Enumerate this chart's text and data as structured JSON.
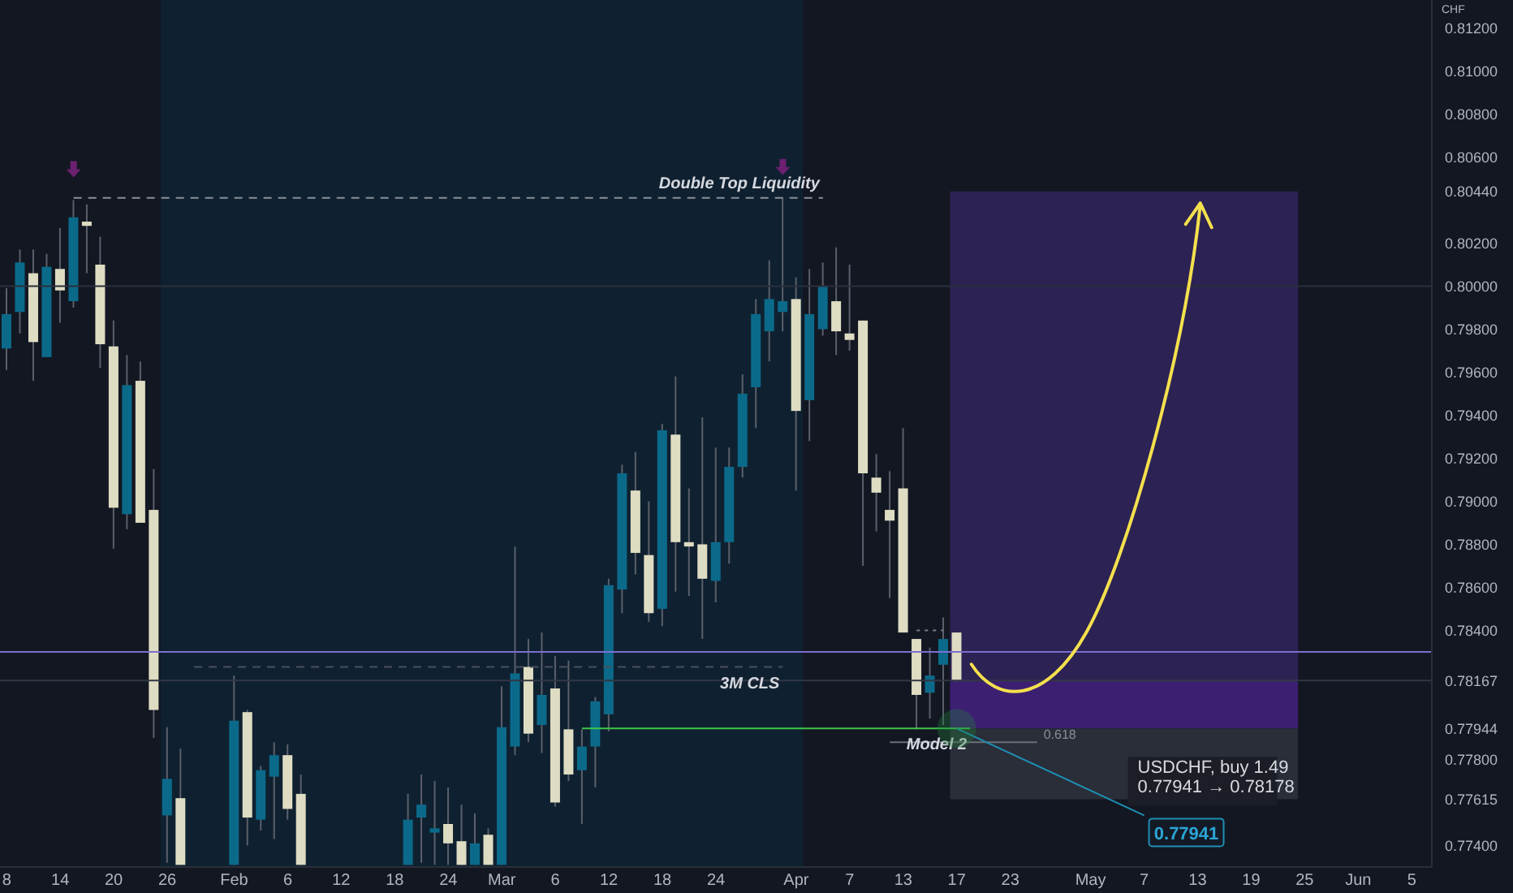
{
  "chart_data": {
    "type": "candlestick",
    "ylabel": "CHF",
    "categories": [
      "8",
      null,
      null,
      null,
      "14",
      null,
      null,
      null,
      "20",
      null,
      null,
      null,
      "26",
      null,
      null,
      null,
      null,
      "Feb",
      null,
      null,
      null,
      "6",
      null,
      null,
      null,
      "12",
      null,
      null,
      null,
      "18",
      null,
      null,
      null,
      "24",
      null,
      null,
      null,
      "Mar",
      null,
      null,
      null,
      "6",
      null,
      null,
      null,
      "12",
      null,
      null,
      null,
      "18",
      null,
      null,
      null,
      "24",
      null,
      null,
      null,
      null,
      null,
      "Apr",
      null,
      null,
      null,
      "7",
      null,
      null,
      null,
      "13",
      null,
      null,
      null,
      "17",
      null,
      null,
      null,
      "23",
      null,
      null,
      null,
      null,
      null,
      "May",
      null,
      null,
      null,
      "7",
      null,
      null,
      null,
      "13",
      null,
      null,
      null,
      "19",
      null,
      null,
      null,
      "25",
      null,
      null,
      null,
      "Jun",
      null,
      null,
      null,
      "5",
      null
    ],
    "ohlc": [
      [
        0.7971,
        0.7999,
        0.7961,
        0.7987
      ],
      [
        0.7988,
        0.8017,
        0.7978,
        0.8011
      ],
      [
        0.8006,
        0.8017,
        0.7956,
        0.7974
      ],
      [
        0.7967,
        0.8015,
        0.7967,
        0.8009
      ],
      [
        0.8008,
        0.8027,
        0.7983,
        0.7998
      ],
      [
        0.7993,
        0.804,
        0.799,
        0.8032
      ],
      [
        0.803,
        0.8038,
        0.8006,
        0.8028
      ],
      [
        0.801,
        0.8023,
        0.7962,
        0.7973
      ],
      [
        0.7972,
        0.7984,
        0.7878,
        0.7897
      ],
      [
        0.7894,
        0.7968,
        0.7887,
        0.7954
      ],
      [
        0.7956,
        0.7965,
        0.789,
        0.789
      ],
      [
        0.7896,
        0.7915,
        0.779,
        0.7803
      ],
      [
        0.7754,
        0.7795,
        0.7732,
        0.7771
      ],
      [
        0.7762,
        0.7785,
        0.7731,
        0.7731
      ],
      null,
      null,
      null,
      [
        0.7731,
        0.7819,
        0.7731,
        0.7798
      ],
      [
        0.7802,
        0.7803,
        0.774,
        0.7753
      ],
      [
        0.7752,
        0.7777,
        0.7747,
        0.7775
      ],
      [
        0.7772,
        0.7788,
        0.7743,
        0.7782
      ],
      [
        0.7782,
        0.7787,
        0.7752,
        0.7757
      ],
      [
        0.7764,
        0.7773,
        0.7731,
        0.7731
      ],
      null,
      null,
      null,
      null,
      null,
      null,
      null,
      [
        0.7731,
        0.7764,
        0.7731,
        0.7752
      ],
      [
        0.7753,
        0.7773,
        0.7732,
        0.7759
      ],
      [
        0.7746,
        0.777,
        0.7731,
        0.7748
      ],
      [
        0.775,
        0.7767,
        0.7731,
        0.7741
      ],
      [
        0.7742,
        0.7759,
        0.7731,
        0.7731
      ],
      [
        0.7731,
        0.7755,
        0.7731,
        0.7741
      ],
      [
        0.7745,
        0.7748,
        0.7731,
        0.7731
      ],
      [
        0.7731,
        0.7814,
        0.7731,
        0.7795
      ],
      [
        0.7786,
        0.7879,
        0.7782,
        0.782
      ],
      [
        0.7823,
        0.7836,
        0.7788,
        0.7792
      ],
      [
        0.7796,
        0.7839,
        0.7783,
        0.781
      ],
      [
        0.7813,
        0.7828,
        0.7758,
        0.776
      ],
      [
        0.7794,
        0.7826,
        0.777,
        0.7773
      ],
      [
        0.7775,
        0.7794,
        0.775,
        0.7786
      ],
      [
        0.7786,
        0.7809,
        0.7767,
        0.7807
      ],
      [
        0.7801,
        0.7864,
        0.7793,
        0.7861
      ],
      [
        0.7859,
        0.7917,
        0.7848,
        0.7913
      ],
      [
        0.7905,
        0.7923,
        0.7866,
        0.7876
      ],
      [
        0.7875,
        0.79,
        0.7844,
        0.7848
      ],
      [
        0.785,
        0.7936,
        0.7842,
        0.7933
      ],
      [
        0.7931,
        0.7958,
        0.7858,
        0.7881
      ],
      [
        0.7881,
        0.7906,
        0.7856,
        0.7879
      ],
      [
        0.788,
        0.7939,
        0.7836,
        0.7864
      ],
      [
        0.7863,
        0.7925,
        0.7853,
        0.7881
      ],
      [
        0.7881,
        0.7925,
        0.7871,
        0.7916
      ],
      [
        0.7916,
        0.7959,
        0.7911,
        0.795
      ],
      [
        0.7953,
        0.7994,
        0.7934,
        0.7987
      ],
      [
        0.7979,
        0.8012,
        0.7965,
        0.7994
      ],
      [
        0.7988,
        0.8041,
        0.7979,
        0.7993
      ],
      [
        0.7994,
        0.8004,
        0.7905,
        0.7942
      ],
      [
        0.7947,
        0.8008,
        0.7928,
        0.7987
      ],
      [
        0.798,
        0.8011,
        0.7977,
        0.8
      ],
      [
        0.7993,
        0.8018,
        0.7968,
        0.7979
      ],
      [
        0.7978,
        0.801,
        0.797,
        0.7975
      ],
      [
        0.7984,
        0.7984,
        0.787,
        0.7913
      ],
      [
        0.7911,
        0.7922,
        0.7886,
        0.7904
      ],
      [
        0.7896,
        0.7914,
        0.7855,
        0.7891
      ],
      [
        0.7906,
        0.7934,
        0.7839,
        0.7839
      ],
      [
        0.7836,
        0.7836,
        0.7794,
        0.781
      ],
      [
        0.7811,
        0.7832,
        0.7799,
        0.7819
      ],
      [
        0.7824,
        0.7846,
        0.7796,
        0.7836
      ],
      [
        0.7839,
        0.7839,
        0.7816,
        0.78167
      ],
      null,
      null,
      null,
      null,
      null,
      null,
      null,
      null,
      null,
      null,
      null,
      null,
      null,
      null,
      null,
      null,
      null,
      null,
      null,
      null,
      null,
      null,
      null,
      null,
      null,
      null,
      null,
      null,
      null,
      null,
      null,
      null,
      null,
      null,
      null
    ],
    "colors": [
      "#0b6a8a",
      "#0b6a8a",
      "#dedcc2",
      "#0b6a8a",
      "#dedcc2",
      "#0b6a8a",
      "#dedcc2",
      "#dedcc2",
      "#dedcc2",
      "#0b6a8a",
      "#dedcc2",
      "#dedcc2",
      "#0b6a8a",
      "#dedcc2",
      null,
      null,
      null,
      "#0b6a8a",
      "#dedcc2",
      "#0b6a8a",
      "#0b6a8a",
      "#dedcc2",
      "#dedcc2",
      null,
      null,
      null,
      null,
      null,
      null,
      null,
      "#0b6a8a",
      "#0b6a8a",
      "#0b6a8a",
      "#dedcc2",
      "#dedcc2",
      "#0b6a8a",
      "#dedcc2",
      "#0b6a8a",
      "#0b6a8a",
      "#dedcc2",
      "#0b6a8a",
      "#dedcc2",
      "#dedcc2",
      "#0b6a8a",
      "#0b6a8a",
      "#0b6a8a",
      "#0b6a8a",
      "#dedcc2",
      "#dedcc2",
      "#0b6a8a",
      "#dedcc2",
      "#dedcc2",
      "#dedcc2",
      "#0b6a8a",
      "#0b6a8a",
      "#0b6a8a",
      "#0b6a8a",
      "#0b6a8a",
      "#0b6a8a",
      "#dedcc2",
      "#0b6a8a",
      "#0b6a8a",
      "#dedcc2",
      "#dedcc2",
      "#dedcc2",
      "#dedcc2",
      "#dedcc2",
      "#dedcc2",
      "#dedcc2",
      "#0b6a8a",
      "#0b6a8a",
      "#dedcc2",
      null,
      null,
      null,
      null,
      null,
      null,
      null,
      null,
      null,
      null,
      null,
      null,
      null,
      null,
      null,
      null,
      null,
      null,
      null,
      null,
      null,
      null,
      null,
      null,
      null,
      null,
      null,
      null,
      null,
      null,
      null,
      null,
      null,
      null,
      null
    ],
    "series": [
      {
        "type": "line",
        "name": "Double Top Liquidity",
        "color": "#8a8e99",
        "line_style": "dashed",
        "values": [
          null,
          null,
          null,
          null,
          null,
          0.8041,
          null,
          null,
          null,
          null,
          null,
          null,
          null,
          null,
          null,
          null,
          null,
          null,
          null,
          null,
          null,
          null,
          null,
          null,
          null,
          null,
          null,
          null,
          null,
          null,
          null,
          null,
          null,
          null,
          null,
          null,
          null,
          null,
          null,
          null,
          null,
          null,
          null,
          null,
          null,
          null,
          null,
          null,
          null,
          null,
          null,
          null,
          null,
          null,
          null,
          null,
          null,
          null,
          null,
          null,
          null,
          0.8041,
          null,
          null,
          null,
          null,
          null,
          null,
          null,
          null,
          null,
          null,
          null,
          null,
          null,
          null,
          null,
          null,
          null,
          null,
          null,
          null,
          null,
          null,
          null,
          null,
          null,
          null,
          null,
          null,
          null,
          null,
          null,
          null,
          null,
          null,
          null,
          null,
          null,
          null,
          null,
          null,
          null,
          null,
          null,
          null,
          null
        ]
      },
      {
        "type": "line",
        "name": "3M CLS",
        "color": "#4a4f5c",
        "line_style": "dashed",
        "values": [
          null,
          null,
          null,
          null,
          null,
          null,
          null,
          null,
          null,
          null,
          null,
          null,
          null,
          null,
          0.7823,
          null,
          null,
          null,
          null,
          null,
          null,
          null,
          null,
          null,
          null,
          null,
          null,
          null,
          null,
          null,
          null,
          null,
          null,
          null,
          null,
          null,
          null,
          null,
          null,
          null,
          null,
          null,
          null,
          null,
          null,
          null,
          null,
          null,
          null,
          null,
          null,
          null,
          null,
          null,
          null,
          null,
          null,
          null,
          0.7823,
          null,
          null,
          null,
          null,
          null,
          null,
          null,
          null,
          null,
          null,
          null,
          null,
          null,
          null,
          null,
          null,
          null,
          null,
          null,
          null,
          null,
          null,
          null,
          null,
          null,
          null,
          null,
          null,
          null,
          null,
          null,
          null,
          null,
          null,
          null,
          null,
          null,
          null,
          null,
          null,
          null,
          null,
          null,
          null,
          null,
          null,
          null,
          null
        ]
      },
      {
        "type": "line",
        "name": "Model 2",
        "color": "#3cc84a",
        "line_style": "solid",
        "values": [
          null,
          null,
          null,
          null,
          null,
          null,
          null,
          null,
          null,
          null,
          null,
          null,
          null,
          null,
          null,
          null,
          null,
          null,
          null,
          null,
          null,
          null,
          null,
          null,
          null,
          null,
          null,
          null,
          null,
          null,
          null,
          null,
          null,
          null,
          null,
          null,
          null,
          null,
          null,
          null,
          null,
          null,
          null,
          0.77944,
          null,
          null,
          null,
          null,
          null,
          null,
          null,
          null,
          null,
          null,
          null,
          null,
          null,
          null,
          null,
          null,
          null,
          null,
          null,
          null,
          null,
          null,
          null,
          null,
          null,
          null,
          null,
          null,
          0.77944,
          null,
          null,
          null,
          null,
          null,
          null,
          null,
          null,
          null,
          null,
          null,
          null,
          null,
          null,
          null,
          null,
          null,
          null,
          null,
          null,
          null,
          null,
          null,
          null,
          null,
          null,
          null,
          null,
          null,
          null,
          null,
          null,
          null,
          null
        ]
      },
      {
        "type": "line",
        "name": "0.618",
        "color": "#6b6f7a",
        "line_style": "solid",
        "values": [
          null,
          null,
          null,
          null,
          null,
          null,
          null,
          null,
          null,
          null,
          null,
          null,
          null,
          null,
          null,
          null,
          null,
          null,
          null,
          null,
          null,
          null,
          null,
          null,
          null,
          null,
          null,
          null,
          null,
          null,
          null,
          null,
          null,
          null,
          null,
          null,
          null,
          null,
          null,
          null,
          null,
          null,
          null,
          null,
          null,
          null,
          null,
          null,
          null,
          null,
          null,
          null,
          null,
          null,
          null,
          null,
          null,
          null,
          null,
          null,
          null,
          null,
          null,
          null,
          null,
          null,
          0.7788,
          null,
          null,
          null,
          null,
          null,
          null,
          null,
          null,
          null,
          null,
          0.7788,
          null,
          null,
          null,
          null,
          null,
          null,
          null,
          null,
          null,
          null,
          null,
          null,
          null,
          null,
          null,
          null,
          null,
          null,
          null,
          null,
          null,
          null,
          null,
          null,
          null,
          null,
          null,
          null,
          null
        ]
      },
      {
        "type": "line",
        "color": "#7a7e88",
        "line_style": "dotted",
        "values": [
          null,
          null,
          null,
          null,
          null,
          null,
          null,
          null,
          null,
          null,
          null,
          null,
          null,
          null,
          null,
          null,
          null,
          null,
          null,
          null,
          null,
          null,
          null,
          null,
          null,
          null,
          null,
          null,
          null,
          null,
          null,
          null,
          null,
          null,
          null,
          null,
          null,
          null,
          null,
          null,
          null,
          null,
          null,
          null,
          null,
          null,
          null,
          null,
          null,
          null,
          null,
          null,
          null,
          null,
          null,
          null,
          null,
          null,
          null,
          null,
          null,
          null,
          null,
          null,
          null,
          null,
          null,
          null,
          0.784,
          null,
          0.784,
          null,
          null,
          null,
          null,
          null,
          null,
          null,
          null,
          null,
          null,
          null,
          null,
          null,
          null,
          null,
          null,
          null,
          null,
          null,
          null,
          null,
          null,
          null,
          null,
          null,
          null,
          null,
          null,
          null,
          null,
          null,
          null,
          null,
          null,
          null,
          null
        ]
      },
      {
        "type": "line",
        "color": "#1e8fb3",
        "line_style": "solid",
        "values": [
          null,
          null,
          null,
          null,
          null,
          null,
          null,
          null,
          null,
          null,
          null,
          null,
          null,
          null,
          null,
          null,
          null,
          null,
          null,
          null,
          null,
          null,
          null,
          null,
          null,
          null,
          null,
          null,
          null,
          null,
          null,
          null,
          null,
          null,
          null,
          null,
          null,
          null,
          null,
          null,
          null,
          null,
          null,
          null,
          null,
          null,
          null,
          null,
          null,
          null,
          null,
          null,
          null,
          null,
          null,
          null,
          null,
          null,
          null,
          null,
          null,
          null,
          null,
          null,
          null,
          null,
          null,
          null,
          null,
          null,
          null,
          0.77944,
          null,
          null,
          null,
          null,
          null,
          null,
          null,
          null,
          null,
          null,
          null,
          null,
          null,
          0.7754,
          null,
          null,
          null,
          null,
          null,
          null,
          null,
          null,
          null,
          null,
          null,
          null,
          null,
          null,
          null,
          null,
          null,
          null,
          null,
          null,
          null
        ]
      }
    ],
    "ref_lines": [
      {
        "axis": "y",
        "value": 0.8,
        "color": "#2a2f3b",
        "line_style": "solid"
      },
      {
        "axis": "y",
        "value": 0.78167,
        "color": "#323744",
        "line_style": "solid"
      },
      {
        "axis": "y",
        "value": 0.783,
        "color": "#7b6fd0",
        "line_style": "solid"
      }
    ],
    "bands": [
      {
        "axis": "x",
        "from": "26",
        "to": "Apr",
        "color": "#0f2130"
      },
      {
        "axis": "y",
        "from": 0.78167,
        "to": 0.8044,
        "color": "#2c2254"
      },
      {
        "axis": "y",
        "from": 0.77944,
        "to": 0.78167,
        "color": "#3d1f72"
      },
      {
        "axis": "y",
        "from": 0.77615,
        "to": 0.77944,
        "color": "#2a2e39"
      }
    ],
    "annotations": [
      "USDCHF, buy 1.49",
      "0.77941 → 0.78178",
      "0.77941"
    ],
    "ylim": [
      0.773,
      0.8133
    ],
    "yticks": [
      {
        "value": 0.812,
        "label": "0.81200"
      },
      {
        "value": 0.81,
        "label": "0.81000"
      },
      {
        "value": 0.808,
        "label": "0.80800"
      },
      {
        "value": 0.806,
        "label": "0.80600"
      },
      {
        "value": 0.8044,
        "label": "0.80440"
      },
      {
        "value": 0.802,
        "label": "0.80200"
      },
      {
        "value": 0.8,
        "label": "0.80000"
      },
      {
        "value": 0.798,
        "label": "0.79800"
      },
      {
        "value": 0.796,
        "label": "0.79600"
      },
      {
        "value": 0.794,
        "label": "0.79400"
      },
      {
        "value": 0.792,
        "label": "0.79200"
      },
      {
        "value": 0.79,
        "label": "0.79000"
      },
      {
        "value": 0.788,
        "label": "0.78800"
      },
      {
        "value": 0.786,
        "label": "0.78600"
      },
      {
        "value": 0.784,
        "label": "0.78400"
      },
      {
        "value": 0.78167,
        "label": "0.78167"
      },
      {
        "value": 0.77944,
        "label": "0.77944"
      },
      {
        "value": 0.778,
        "label": "0.77800"
      },
      {
        "value": 0.77615,
        "label": "0.77615"
      },
      {
        "value": 0.774,
        "label": "0.77400"
      }
    ]
  }
}
